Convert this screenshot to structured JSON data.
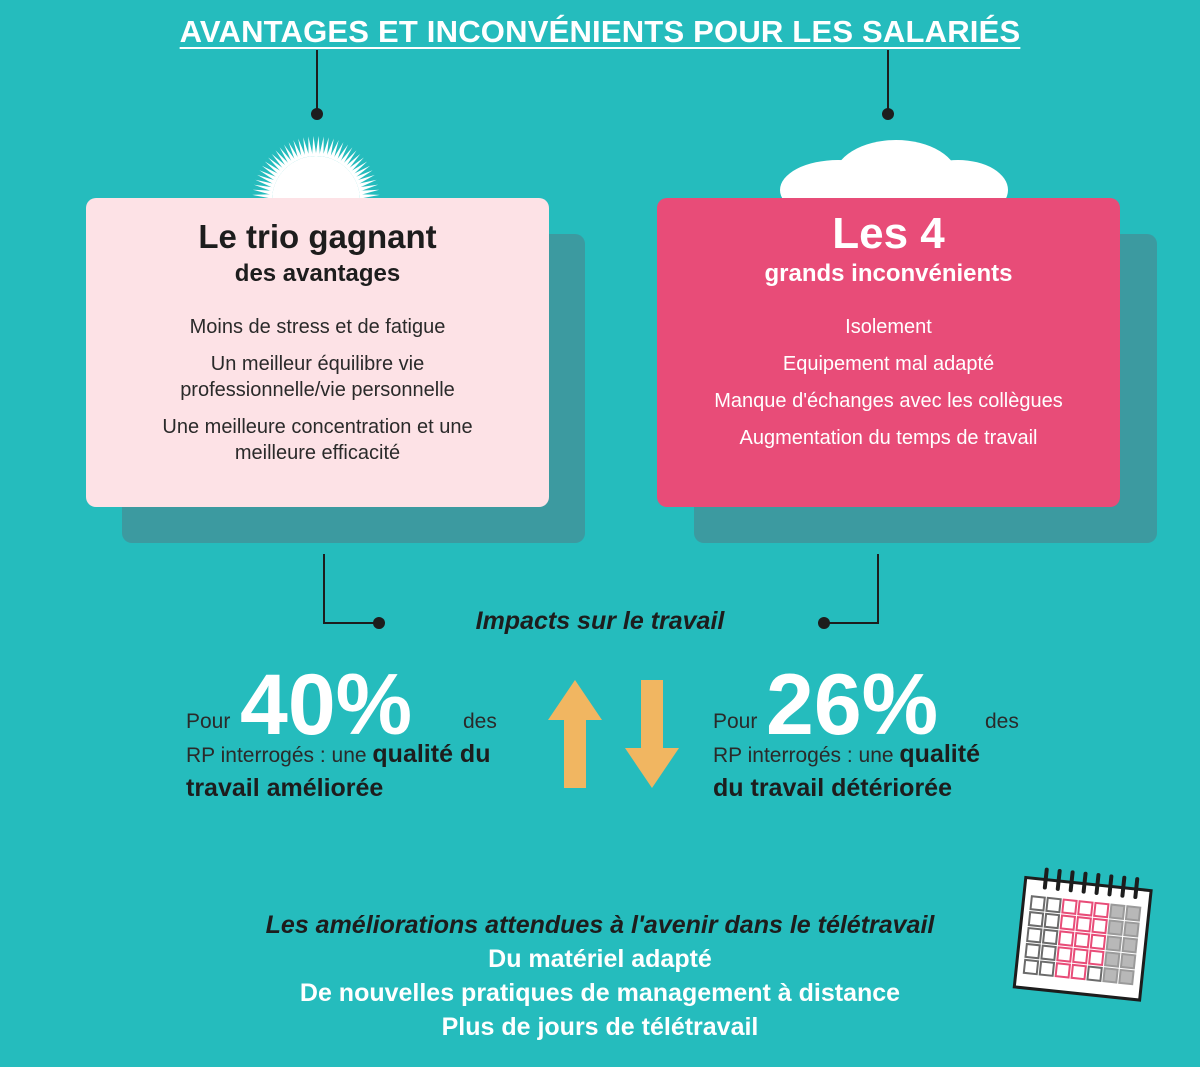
{
  "title": "AVANTAGES ET INCONVÉNIENTS POUR LES SALARIÉS",
  "colors": {
    "background": "#25bcbd",
    "advantages_card": "#fde2e6",
    "disadvantages_card": "#e84c78",
    "shadow": "#3c9aa0",
    "arrow": "#f1b661",
    "calendar_highlight": "#e84c78"
  },
  "advantages": {
    "icon": "sun-icon",
    "heading": "Le trio gagnant",
    "subheading": "des avantages",
    "items": [
      "Moins de stress et de fatigue",
      "Un meilleur équilibre vie professionnelle/vie personnelle",
      "Une meilleure concentration et une meilleure efficacité"
    ]
  },
  "disadvantages": {
    "icon": "cloud-icon",
    "heading": "Les 4",
    "subheading": "grands inconvénients",
    "items": [
      "Isolement",
      "Equipement mal adapté",
      "Manque d'échanges avec les collègues",
      "Augmentation du temps de travail"
    ]
  },
  "impacts": {
    "title": "Impacts sur le travail",
    "improved": {
      "prefix": "Pour",
      "value": "40%",
      "suffix": "des",
      "body": "RP interrogés : une",
      "strong_1": "qualité du",
      "strong_2": "travail améliorée",
      "arrow_icon": "arrow-up-icon"
    },
    "deteriorated": {
      "prefix": "Pour",
      "value": "26%",
      "suffix": "des",
      "body": "RP interrogés : une",
      "strong_1": "qualité",
      "strong_2": "du travail détériorée",
      "arrow_icon": "arrow-down-icon"
    }
  },
  "improvements": {
    "title": "Les améliorations attendues à l'avenir dans le télétravail",
    "items": [
      "Du matériel adapté",
      "De nouvelles pratiques de management à distance",
      "Plus de jours de télétravail"
    ],
    "icon": "calendar-icon"
  }
}
